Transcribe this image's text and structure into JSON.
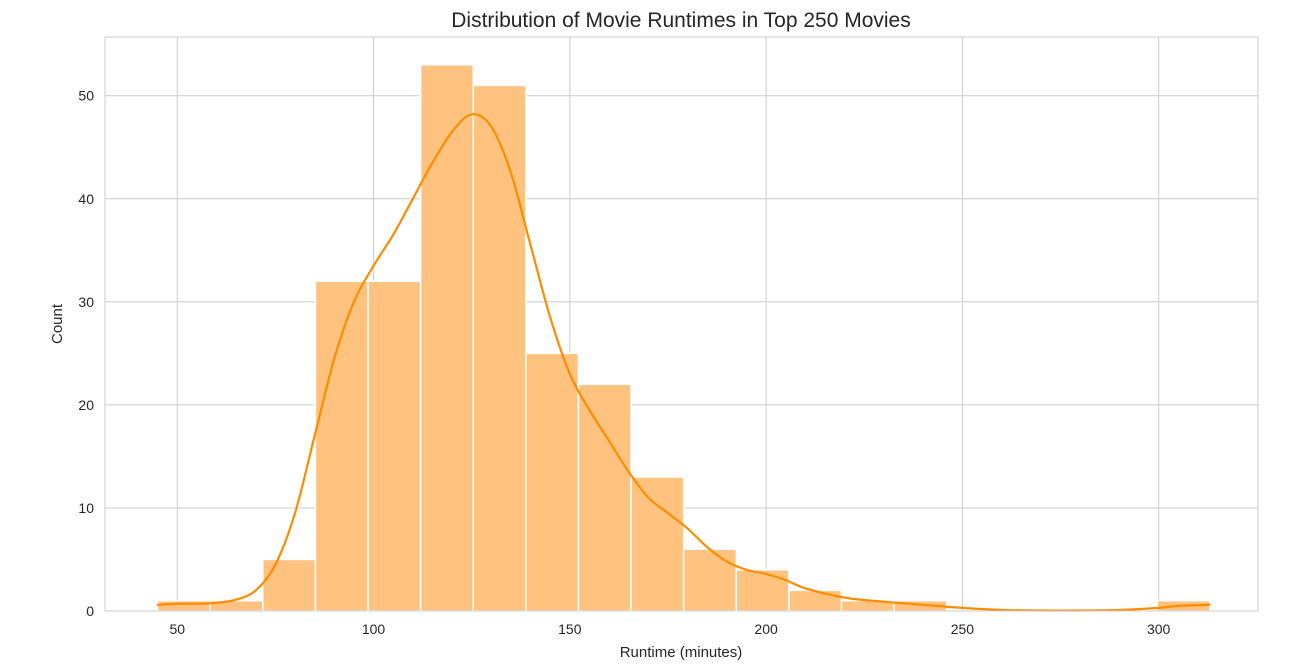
{
  "chart_data": {
    "type": "bar",
    "title": "Distribution of Movie Runtimes in Top 250 Movies",
    "xlabel": "Runtime (minutes)",
    "ylabel": "Count",
    "xlim": [
      31.6,
      325.3
    ],
    "ylim": [
      0,
      55.7
    ],
    "xticks": [
      50,
      100,
      150,
      200,
      250,
      300
    ],
    "yticks": [
      0,
      10,
      20,
      30,
      40,
      50
    ],
    "grid": true,
    "bar_color": "#ffc27f",
    "bar_edge_color": "#ffffff",
    "kde_color": "#ff8c00",
    "bins": [
      {
        "x0": 45.0,
        "x1": 58.4,
        "count": 1
      },
      {
        "x0": 58.4,
        "x1": 71.8,
        "count": 1
      },
      {
        "x0": 71.8,
        "x1": 85.2,
        "count": 5
      },
      {
        "x0": 85.2,
        "x1": 98.6,
        "count": 32
      },
      {
        "x0": 98.6,
        "x1": 112.0,
        "count": 32
      },
      {
        "x0": 112.0,
        "x1": 125.4,
        "count": 53
      },
      {
        "x0": 125.4,
        "x1": 138.8,
        "count": 51
      },
      {
        "x0": 138.8,
        "x1": 152.2,
        "count": 25
      },
      {
        "x0": 152.2,
        "x1": 165.6,
        "count": 22
      },
      {
        "x0": 165.6,
        "x1": 179.0,
        "count": 13
      },
      {
        "x0": 179.0,
        "x1": 192.4,
        "count": 6
      },
      {
        "x0": 192.4,
        "x1": 205.8,
        "count": 4
      },
      {
        "x0": 205.8,
        "x1": 219.2,
        "count": 2
      },
      {
        "x0": 219.2,
        "x1": 232.6,
        "count": 1
      },
      {
        "x0": 232.6,
        "x1": 246.0,
        "count": 1
      },
      {
        "x0": 246.0,
        "x1": 259.4,
        "count": 0
      },
      {
        "x0": 259.4,
        "x1": 272.8,
        "count": 0
      },
      {
        "x0": 272.8,
        "x1": 286.2,
        "count": 0
      },
      {
        "x0": 286.2,
        "x1": 299.6,
        "count": 0
      },
      {
        "x0": 299.6,
        "x1": 313.0,
        "count": 1
      }
    ],
    "kde": {
      "x": [
        45,
        50,
        55,
        60,
        65,
        70,
        75,
        80,
        85,
        90,
        95,
        100,
        105,
        110,
        115,
        120,
        125,
        130,
        135,
        140,
        145,
        150,
        155,
        160,
        165,
        170,
        175,
        180,
        185,
        190,
        195,
        200,
        205,
        210,
        220,
        230,
        240,
        250,
        260,
        270,
        280,
        290,
        300,
        305,
        313
      ],
      "y": [
        0.6,
        0.7,
        0.7,
        0.8,
        1.1,
        2.0,
        4.5,
        9.5,
        17.0,
        24.5,
        30.0,
        33.5,
        36.5,
        40.0,
        43.5,
        46.5,
        48.2,
        47.0,
        42.5,
        35.5,
        28.5,
        23.0,
        19.5,
        16.5,
        13.5,
        11.0,
        9.5,
        8.0,
        6.2,
        4.8,
        4.0,
        3.6,
        3.0,
        2.2,
        1.3,
        0.9,
        0.6,
        0.3,
        0.1,
        0.05,
        0.05,
        0.1,
        0.3,
        0.5,
        0.6
      ]
    }
  }
}
